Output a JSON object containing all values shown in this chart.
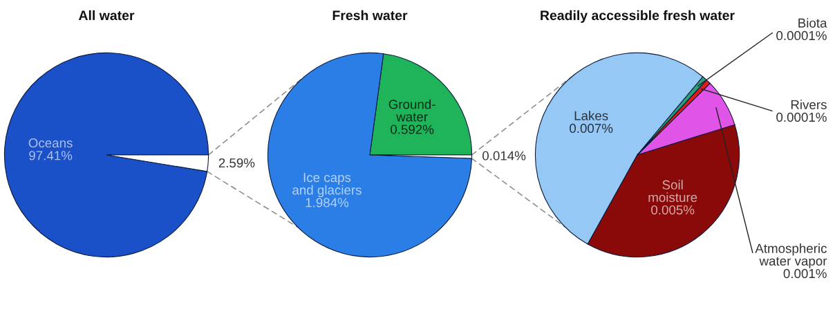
{
  "chart_data": [
    {
      "type": "pie",
      "title": "All water",
      "categories": [
        "Oceans",
        null
      ],
      "values": [
        97.41,
        2.59
      ],
      "colors": [
        "#1a50c8",
        "#ffffff"
      ],
      "value_labels": [
        "97.41%",
        "2.59%"
      ]
    },
    {
      "type": "pie",
      "title": "Fresh water",
      "categories": [
        "Ground-\nwater",
        "Ice caps\nand glaciers",
        null
      ],
      "values": [
        0.592,
        1.984,
        0.014
      ],
      "colors": [
        "#1fb35a",
        "#2a7ee6",
        "#ffffff"
      ],
      "value_labels": [
        "0.592%",
        "1.984%",
        "0.014%"
      ]
    },
    {
      "type": "pie",
      "title": "Readily accessible fresh water",
      "categories": [
        "Lakes",
        "Soil\nmoisture",
        "Atmospheric\nwater vapor",
        "Rivers",
        "Biota"
      ],
      "values": [
        0.007,
        0.005,
        0.001,
        0.0001,
        0.0001
      ],
      "colors": [
        "#96c8f5",
        "#8a0a0a",
        "#e055e8",
        "#e81818",
        "#2aa07a"
      ],
      "value_labels": [
        "0.007%",
        "0.005%",
        "0.001%",
        "0.0001%",
        "0.0001%"
      ]
    }
  ]
}
